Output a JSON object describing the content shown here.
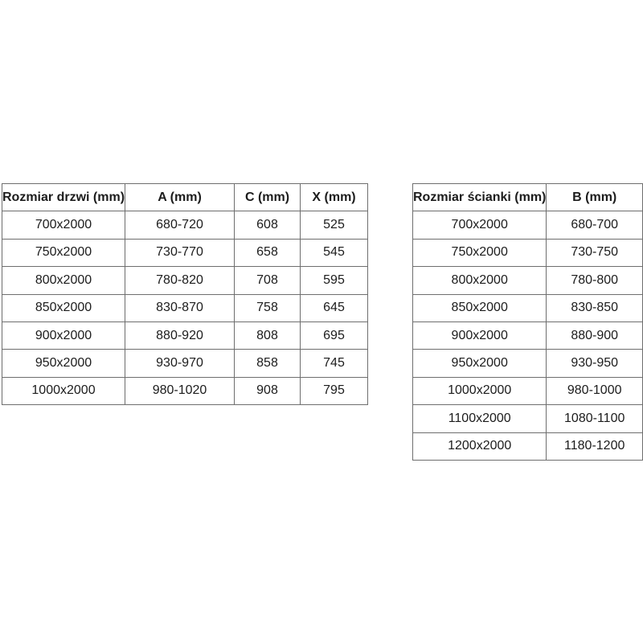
{
  "page": {
    "background_color": "#ffffff",
    "table_border_color": "#6e6e6e",
    "text_color": "#1c1c1c"
  },
  "tables": [
    {
      "id": "door-sizes",
      "headers": [
        "Rozmiar drzwi (mm)",
        "A (mm)",
        "C (mm)",
        "X (mm)"
      ],
      "rows": [
        [
          "700x2000",
          "680-720",
          "608",
          "525"
        ],
        [
          "750x2000",
          "730-770",
          "658",
          "545"
        ],
        [
          "800x2000",
          "780-820",
          "708",
          "595"
        ],
        [
          "850x2000",
          "830-870",
          "758",
          "645"
        ],
        [
          "900x2000",
          "880-920",
          "808",
          "695"
        ],
        [
          "950x2000",
          "930-970",
          "858",
          "745"
        ],
        [
          "1000x2000",
          "980-1020",
          "908",
          "795"
        ]
      ]
    },
    {
      "id": "wall-sizes",
      "headers": [
        "Rozmiar ścianki (mm)",
        "B (mm)"
      ],
      "rows": [
        [
          "700x2000",
          "680-700"
        ],
        [
          "750x2000",
          "730-750"
        ],
        [
          "800x2000",
          "780-800"
        ],
        [
          "850x2000",
          "830-850"
        ],
        [
          "900x2000",
          "880-900"
        ],
        [
          "950x2000",
          "930-950"
        ],
        [
          "1000x2000",
          "980-1000"
        ],
        [
          "1100x2000",
          "1080-1100"
        ],
        [
          "1200x2000",
          "1180-1200"
        ]
      ]
    }
  ]
}
